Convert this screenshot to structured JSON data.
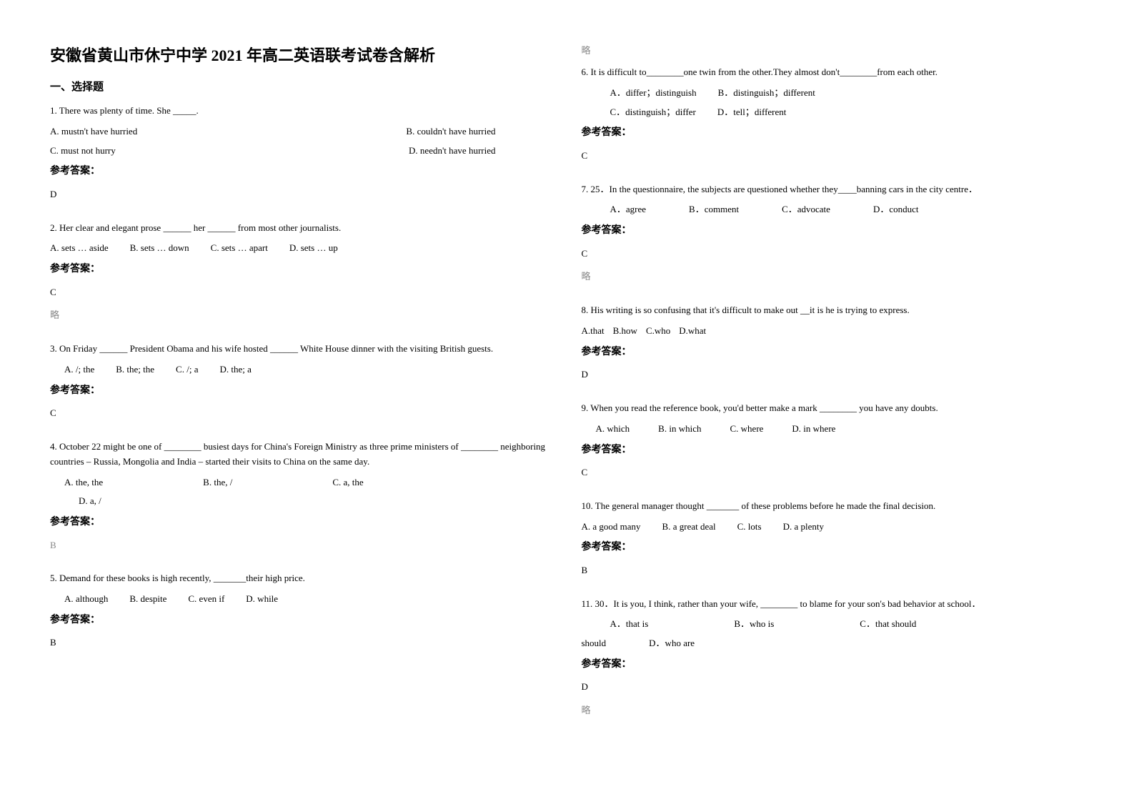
{
  "document": {
    "title": "安徽省黄山市休宁中学 2021 年高二英语联考试卷含解析",
    "section_heading": "一、选择题",
    "answer_label": "参考答案：",
    "lue_text": "略",
    "colors": {
      "background": "#ffffff",
      "text": "#000000",
      "lue_color": "#888888"
    },
    "typography": {
      "title_fontsize": 22,
      "section_fontsize": 15,
      "body_fontsize": 13,
      "answer_label_fontsize": 14
    }
  },
  "left_column": {
    "q1": {
      "text": "1. There was plenty of time. She _____.",
      "optA": "A. mustn't have hurried",
      "optB": "B. couldn't have hurried",
      "optC": "C. must not hurry",
      "optD": "D. needn't have hurried",
      "answer": "D"
    },
    "q2": {
      "text": "2. Her clear and elegant prose ______ her ______ from most other journalists.",
      "optA": "A. sets … aside",
      "optB": "B. sets … down",
      "optC": "C. sets … apart",
      "optD": "D. sets … up",
      "answer": "C"
    },
    "q3": {
      "text": "3. On Friday ______ President Obama and his wife hosted ______ White House dinner with the visiting British guests.",
      "optA": "A. /; the",
      "optB": "B. the; the",
      "optC": "C. /; a",
      "optD": "D. the; a",
      "answer": "C"
    },
    "q4": {
      "text": "4. October 22 might be one of ________ busiest days for China's Foreign Ministry as three prime ministers of ________ neighboring countries – Russia, Mongolia and India – started their visits to China on the same day.",
      "optA": "A. the, the",
      "optB": "B. the, /",
      "optC": "C. a, the",
      "optD": "D. a, /",
      "answer": "B"
    },
    "q5": {
      "text": "5. Demand for these books is high recently, _______their high price.",
      "optA": "A. although",
      "optB": "B. despite",
      "optC": "C. even if",
      "optD": "D. while",
      "answer": "B"
    }
  },
  "right_column": {
    "q6": {
      "text": "6. It is difficult to________one twin from the other.They almost don't________from each other.",
      "optA": "A．differ；distinguish",
      "optB": "B．distinguish；different",
      "optC": "C．distinguish；differ",
      "optD": "D．tell；different",
      "answer": "C"
    },
    "q7": {
      "text": "7. 25．In the questionnaire, the subjects are questioned whether they____banning cars in the city centre．",
      "optA": "A．agree",
      "optB": "B．comment",
      "optC": "C．advocate",
      "optD": "D．conduct",
      "answer": "C"
    },
    "q8": {
      "text": "8. His writing is so confusing that it's difficult to make out __it is he is trying to express.",
      "optA": "A.that",
      "optB": "B.how",
      "optC": "C.who",
      "optD": "D.what",
      "answer": "D"
    },
    "q9": {
      "text": "9. When you read the reference book, you'd better make a mark ________ you have any doubts.",
      "optA": "A. which",
      "optB": "B. in which",
      "optC": "C. where",
      "optD": "D. in where",
      "answer": "C"
    },
    "q10": {
      "text": "10. The general manager thought _______ of these problems before he made the final decision.",
      "optA": "A. a good many",
      "optB": "B. a great deal",
      "optC": "C. lots",
      "optD": "D. a plenty",
      "answer": "B"
    },
    "q11": {
      "text": "11. 30．It is you, I think, rather than your wife, ________ to blame for your son's bad behavior at school．",
      "optA": "A．that is",
      "optB": "B．who is",
      "optC": "C．that should",
      "optD": "D．who are",
      "answer": "D"
    }
  }
}
